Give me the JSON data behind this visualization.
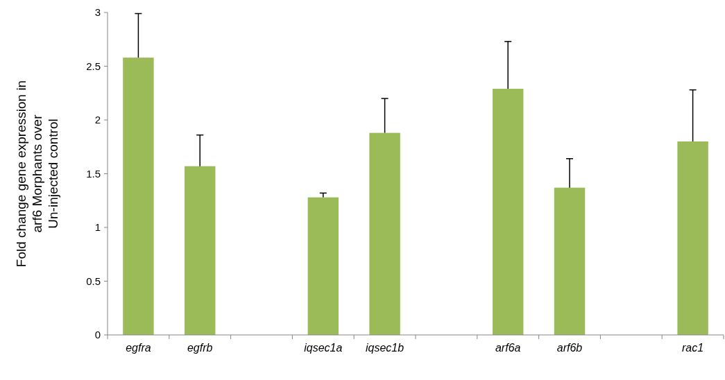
{
  "chart_data": {
    "type": "bar",
    "ylabel": "Fold change gene expression in\narf6 Morphants over\nUn-injected control",
    "categories": [
      "egfra",
      "egfrb",
      null,
      "iqsec1a",
      "iqsec1b",
      null,
      "arf6a",
      "arf6b",
      null,
      "rac1"
    ],
    "values": [
      2.58,
      1.57,
      null,
      1.28,
      1.88,
      null,
      2.29,
      1.37,
      null,
      1.8
    ],
    "errors": [
      [
        2.58,
        2.99
      ],
      [
        1.57,
        1.86
      ],
      null,
      [
        1.28,
        1.32
      ],
      [
        1.88,
        2.2
      ],
      null,
      [
        2.29,
        2.73
      ],
      [
        1.37,
        1.64
      ],
      null,
      [
        1.8,
        2.28
      ]
    ],
    "color": "#9bbb59",
    "ylim": [
      0,
      3
    ],
    "yticks": [
      0,
      0.5,
      1,
      1.5,
      2,
      2.5,
      3
    ],
    "grid": false
  }
}
